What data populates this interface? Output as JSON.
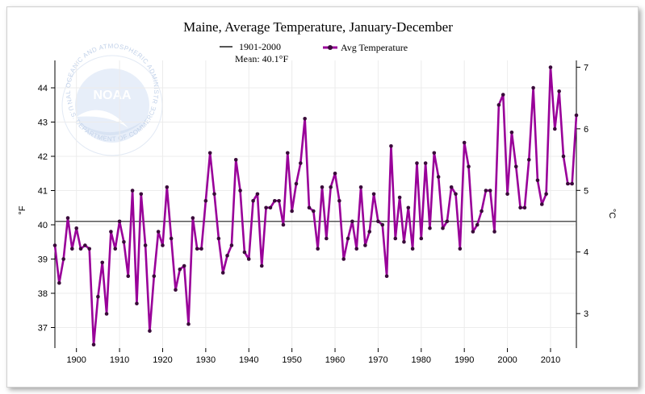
{
  "chart_data": {
    "type": "line",
    "title": "Maine, Average Temperature, January-December",
    "xlabel": "",
    "ylabel": "°F",
    "ylabel_right": "°C",
    "xlim": [
      1895,
      2016
    ],
    "ylim": [
      36.4,
      44.8
    ],
    "ylim_right_celsius": [
      2.44,
      7.11
    ],
    "x_ticks": [
      1900,
      1910,
      1920,
      1930,
      1940,
      1950,
      1960,
      1970,
      1980,
      1990,
      2000,
      2010
    ],
    "y_ticks": [
      37,
      38,
      39,
      40,
      41,
      42,
      43,
      44
    ],
    "y_ticks_right": [
      3,
      4,
      5,
      6,
      7
    ],
    "grid": true,
    "legend_placement": "top-center",
    "baseline": {
      "legend_line1": "1901-2000",
      "legend_line2": "Mean: 40.1°F",
      "value": 40.1,
      "color": "#555555"
    },
    "series": [
      {
        "name": "Avg Temperature",
        "color": "#990099",
        "marker_color": "#3a0a3a",
        "x": [
          1895,
          1896,
          1897,
          1898,
          1899,
          1900,
          1901,
          1902,
          1903,
          1904,
          1905,
          1906,
          1907,
          1908,
          1909,
          1910,
          1911,
          1912,
          1913,
          1914,
          1915,
          1916,
          1917,
          1918,
          1919,
          1920,
          1921,
          1922,
          1923,
          1924,
          1925,
          1926,
          1927,
          1928,
          1929,
          1930,
          1931,
          1932,
          1933,
          1934,
          1935,
          1936,
          1937,
          1938,
          1939,
          1940,
          1941,
          1942,
          1943,
          1944,
          1945,
          1946,
          1947,
          1948,
          1949,
          1950,
          1951,
          1952,
          1953,
          1954,
          1955,
          1956,
          1957,
          1958,
          1959,
          1960,
          1961,
          1962,
          1963,
          1964,
          1965,
          1966,
          1967,
          1968,
          1969,
          1970,
          1971,
          1972,
          1973,
          1974,
          1975,
          1976,
          1977,
          1978,
          1979,
          1980,
          1981,
          1982,
          1983,
          1984,
          1985,
          1986,
          1987,
          1988,
          1989,
          1990,
          1991,
          1992,
          1993,
          1994,
          1995,
          1996,
          1997,
          1998,
          1999,
          2000,
          2001,
          2002,
          2003,
          2004,
          2005,
          2006,
          2007,
          2008,
          2009,
          2010,
          2011,
          2012,
          2013,
          2014,
          2015,
          2016
        ],
        "values": [
          39.4,
          38.3,
          39.0,
          40.2,
          39.3,
          39.9,
          39.3,
          39.4,
          39.3,
          36.5,
          37.9,
          38.9,
          37.4,
          39.8,
          39.3,
          40.1,
          39.5,
          38.5,
          41.0,
          37.7,
          40.9,
          39.4,
          36.9,
          38.5,
          39.8,
          39.4,
          41.1,
          39.6,
          38.1,
          38.7,
          38.8,
          37.1,
          40.2,
          39.3,
          39.3,
          40.7,
          42.1,
          40.9,
          39.6,
          38.6,
          39.1,
          39.4,
          41.9,
          41.0,
          39.2,
          39.0,
          40.7,
          40.9,
          38.8,
          40.5,
          40.5,
          40.7,
          40.7,
          40.0,
          42.1,
          40.4,
          41.2,
          41.8,
          43.1,
          40.5,
          40.4,
          39.3,
          41.1,
          39.6,
          41.1,
          41.5,
          40.7,
          39.0,
          39.6,
          40.1,
          39.3,
          41.1,
          39.4,
          39.8,
          40.9,
          40.1,
          40.0,
          38.5,
          42.3,
          39.6,
          40.8,
          39.5,
          40.5,
          39.3,
          41.8,
          39.6,
          41.8,
          39.9,
          42.1,
          41.4,
          39.9,
          40.1,
          41.1,
          40.9,
          39.3,
          42.4,
          41.7,
          39.8,
          40.0,
          40.4,
          41.0,
          41.0,
          39.8,
          43.5,
          43.8,
          40.9,
          42.7,
          41.7,
          40.5,
          40.5,
          41.9,
          44.0,
          41.3,
          40.6,
          40.9,
          44.6,
          42.8,
          43.9,
          42.0,
          41.2,
          41.2,
          43.2
        ]
      }
    ]
  },
  "watermark": {
    "logo_text": "NOAA",
    "ring_top": "NATIONAL OCEANIC AND ATMOSPHERIC ADMINISTRATION",
    "ring_bottom": "U.S. DEPARTMENT OF COMMERCE"
  }
}
